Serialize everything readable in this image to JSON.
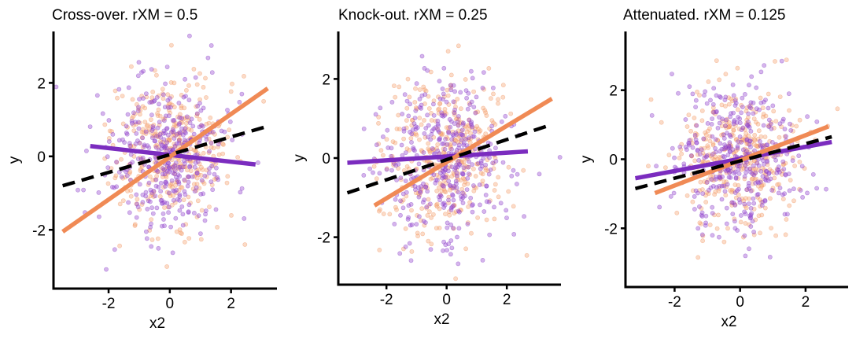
{
  "colors": {
    "group_a": "#7b2cbf",
    "group_a_points": "#9b4fd1",
    "group_b": "#f08a55",
    "group_b_points": "#f6a97a",
    "overall": "#000000"
  },
  "chart_data": [
    {
      "type": "scatter",
      "title": "Cross-over. rXM = 0.5",
      "xlabel": "x2",
      "ylabel": "y",
      "xlim": [
        -3.8,
        3.5
      ],
      "ylim": [
        -3.6,
        3.4
      ],
      "xticks": [
        -2,
        0,
        2
      ],
      "yticks": [
        -2,
        0,
        2
      ],
      "grid": false,
      "legend": "none",
      "point_cloud": {
        "n_per_group": 380,
        "cx": 0.0,
        "cy": 0.1,
        "sx": 1.0,
        "sy": 1.05
      },
      "lines": [
        {
          "role": "group-a",
          "style": "solid",
          "points": [
            [
              -2.6,
              0.28
            ],
            [
              2.8,
              -0.22
            ]
          ]
        },
        {
          "role": "group-b",
          "style": "solid",
          "points": [
            [
              -3.5,
              -2.05
            ],
            [
              3.2,
              1.85
            ]
          ]
        },
        {
          "role": "overall",
          "style": "dashed",
          "points": [
            [
              -3.5,
              -0.8
            ],
            [
              3.2,
              0.82
            ]
          ]
        }
      ]
    },
    {
      "type": "scatter",
      "title": "Knock-out. rXM = 0.25",
      "xlabel": "x2",
      "ylabel": "y",
      "xlim": [
        -3.6,
        3.8
      ],
      "ylim": [
        -3.2,
        3.2
      ],
      "xticks": [
        -2,
        0,
        2
      ],
      "yticks": [
        -2,
        0,
        2
      ],
      "grid": false,
      "legend": "none",
      "point_cloud": {
        "n_per_group": 380,
        "cx": 0.0,
        "cy": 0.0,
        "sx": 1.0,
        "sy": 1.05
      },
      "lines": [
        {
          "role": "group-a",
          "style": "solid",
          "points": [
            [
              -3.3,
              -0.12
            ],
            [
              2.7,
              0.17
            ]
          ]
        },
        {
          "role": "group-b",
          "style": "solid",
          "points": [
            [
              -2.4,
              -1.2
            ],
            [
              3.5,
              1.5
            ]
          ]
        },
        {
          "role": "overall",
          "style": "dashed",
          "points": [
            [
              -3.3,
              -0.88
            ],
            [
              3.5,
              0.85
            ]
          ]
        }
      ]
    },
    {
      "type": "scatter",
      "title": "Attenuated. rXM = 0.125",
      "xlabel": "x2",
      "ylabel": "y",
      "xlim": [
        -3.5,
        3.3
      ],
      "ylim": [
        -3.7,
        3.7
      ],
      "xticks": [
        -2,
        0,
        2
      ],
      "yticks": [
        -2,
        0,
        2
      ],
      "grid": false,
      "legend": "none",
      "point_cloud": {
        "n_per_group": 380,
        "cx": 0.0,
        "cy": 0.0,
        "sx": 1.0,
        "sy": 1.0
      },
      "lines": [
        {
          "role": "group-a",
          "style": "solid",
          "points": [
            [
              -3.2,
              -0.55
            ],
            [
              2.8,
              0.5
            ]
          ]
        },
        {
          "role": "group-b",
          "style": "solid",
          "points": [
            [
              -2.6,
              -0.98
            ],
            [
              2.7,
              0.95
            ]
          ]
        },
        {
          "role": "overall",
          "style": "dashed",
          "points": [
            [
              -3.2,
              -0.85
            ],
            [
              2.8,
              0.65
            ]
          ]
        }
      ]
    }
  ]
}
